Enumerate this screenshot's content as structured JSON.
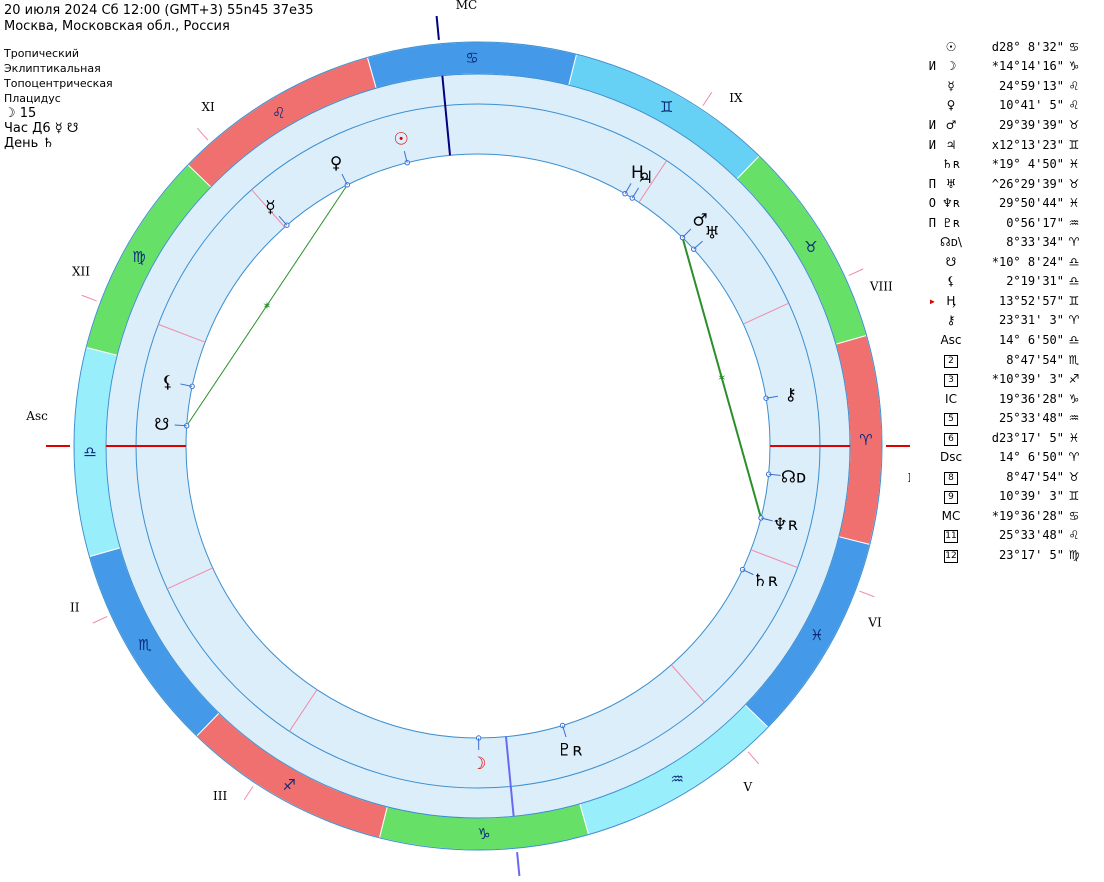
{
  "header": {
    "line1": "20 июля 2024  Сб  12:00 (GMT+3) 55n45  37e35",
    "line2": "Москва, Московская обл., Россия"
  },
  "settings": {
    "zodiac": "Тропический",
    "coordinates": "Эклиптикальная",
    "centric": "Топоцентрическая",
    "houses": "Плацидус",
    "moon_day": "☽  15",
    "hour": "Час Д6 ☿ ☋",
    "day": "День ♄"
  },
  "chart_data": {
    "type": "diagram",
    "asc_deg": 194.11,
    "signs": [
      {
        "glyph": "♈",
        "color": "#f07070"
      },
      {
        "glyph": "♉",
        "color": "#66e066"
      },
      {
        "glyph": "♊",
        "color": "#66d0f5"
      },
      {
        "glyph": "♋",
        "color": "#4499e8"
      },
      {
        "glyph": "♌",
        "color": "#f07070"
      },
      {
        "glyph": "♍",
        "color": "#66e066"
      },
      {
        "glyph": "♎",
        "color": "#99eefc"
      },
      {
        "glyph": "♏",
        "color": "#4499e8"
      },
      {
        "glyph": "♐",
        "color": "#f07070"
      },
      {
        "glyph": "♑",
        "color": "#66e066"
      },
      {
        "glyph": "♒",
        "color": "#99eefc"
      },
      {
        "glyph": "♓",
        "color": "#4499e8"
      }
    ],
    "cusps": [
      {
        "label": "Asc",
        "deg": 194.11
      },
      {
        "label": "II",
        "deg": 218.8
      },
      {
        "label": "III",
        "deg": 250.65
      },
      {
        "label": "IC",
        "deg": 289.61
      },
      {
        "label": "V",
        "deg": 325.56
      },
      {
        "label": "VI",
        "deg": 353.28
      },
      {
        "label": "Dsc",
        "deg": 14.11
      },
      {
        "label": "VIII",
        "deg": 38.8
      },
      {
        "label": "IX",
        "deg": 70.65
      },
      {
        "label": "MC",
        "deg": 109.61
      },
      {
        "label": "XI",
        "deg": 145.56
      },
      {
        "label": "XII",
        "deg": 173.28
      }
    ],
    "planets": [
      {
        "name": "sun",
        "glyph": "☉",
        "deg": 118.14,
        "color": "#e00000",
        "boxed": true
      },
      {
        "name": "moon",
        "glyph": "☽",
        "deg": 284.24,
        "color": "#e00000"
      },
      {
        "name": "mercury",
        "glyph": "☿",
        "deg": 144.99,
        "color": "#000000"
      },
      {
        "name": "venus",
        "glyph": "♀",
        "deg": 130.69,
        "color": "#000000"
      },
      {
        "name": "mars",
        "glyph": "♂",
        "deg": 59.66,
        "color": "#000000"
      },
      {
        "name": "jupiter",
        "glyph": "♃",
        "deg": 72.22,
        "color": "#000000"
      },
      {
        "name": "saturn",
        "glyph": "♄ʀ",
        "deg": 349.08,
        "color": "#000000"
      },
      {
        "name": "uranus",
        "glyph": "♅",
        "deg": 56.49,
        "color": "#000000"
      },
      {
        "name": "neptune",
        "glyph": "♆ʀ",
        "deg": 359.85,
        "color": "#000000"
      },
      {
        "name": "pluto",
        "glyph": "♇ʀ",
        "deg": 300.94,
        "color": "#000000"
      },
      {
        "name": "node",
        "glyph": "☊ᴅ",
        "deg": 8.56,
        "color": "#000000"
      },
      {
        "name": "south-node",
        "glyph": "☋",
        "deg": 190.14,
        "color": "#000000"
      },
      {
        "name": "lilith",
        "glyph": "⚸",
        "deg": 182.33,
        "color": "#000000"
      },
      {
        "name": "haumea",
        "glyph": "Ӊ",
        "deg": 73.88,
        "color": "#000000"
      },
      {
        "name": "chiron",
        "glyph": "⚷",
        "deg": 23.53,
        "color": "#000000"
      }
    ],
    "aspects": [
      {
        "from_deg": 130.69,
        "to_deg": 190.14,
        "color": "#2a8f2a"
      },
      {
        "from_deg": 59.66,
        "to_deg": 359.85,
        "color": "#2a8f2a"
      }
    ]
  },
  "table": [
    {
      "mark": "",
      "mark_red": false,
      "sym": "☉",
      "boxed": false,
      "val": "d28° 8'32\"",
      "sign": "♋"
    },
    {
      "mark": "И",
      "mark_red": false,
      "sym": "☽",
      "boxed": false,
      "val": "*14°14'16\"",
      "sign": "♑"
    },
    {
      "mark": "",
      "mark_red": false,
      "sym": "☿",
      "boxed": false,
      "val": "24°59'13\"",
      "sign": "♌"
    },
    {
      "mark": "",
      "mark_red": false,
      "sym": "♀",
      "boxed": false,
      "val": "10°41' 5\"",
      "sign": "♌"
    },
    {
      "mark": "И",
      "mark_red": false,
      "sym": "♂",
      "boxed": false,
      "val": "29°39'39\"",
      "sign": "♉"
    },
    {
      "mark": "И",
      "mark_red": false,
      "sym": "♃",
      "boxed": false,
      "val": "x12°13'23\"",
      "sign": "♊"
    },
    {
      "mark": "",
      "mark_red": false,
      "sym": "♄ʀ",
      "boxed": false,
      "val": "*19° 4'50\"",
      "sign": "♓"
    },
    {
      "mark": "П",
      "mark_red": false,
      "sym": "♅",
      "boxed": false,
      "val": "^26°29'39\"",
      "sign": "♉"
    },
    {
      "mark": "О",
      "mark_red": false,
      "sym": "♆ʀ",
      "boxed": false,
      "val": "29°50'44\"",
      "sign": "♓"
    },
    {
      "mark": "П",
      "mark_red": false,
      "sym": "♇ʀ",
      "boxed": false,
      "val": "0°56'17\"",
      "sign": "♒"
    },
    {
      "mark": "",
      "mark_red": false,
      "sym": "☊ᴅ\\",
      "boxed": false,
      "val": "8°33'34\"",
      "sign": "♈"
    },
    {
      "mark": "",
      "mark_red": false,
      "sym": "☋",
      "boxed": false,
      "val": "*10° 8'24\"",
      "sign": "♎"
    },
    {
      "mark": "",
      "mark_red": false,
      "sym": "⚸",
      "boxed": false,
      "val": "2°19'31\"",
      "sign": "♎"
    },
    {
      "mark": "▸",
      "mark_red": true,
      "sym": "Ӊ",
      "boxed": false,
      "val": "13°52'57\"",
      "sign": "♊"
    },
    {
      "mark": "",
      "mark_red": false,
      "sym": "⚷",
      "boxed": false,
      "val": "23°31' 3\"",
      "sign": "♈"
    },
    {
      "mark": "",
      "mark_red": false,
      "sym": "Asc",
      "boxed": false,
      "val": "14° 6'50\"",
      "sign": "♎"
    },
    {
      "mark": "",
      "mark_red": false,
      "sym": "2",
      "boxed": true,
      "val": "8°47'54\"",
      "sign": "♏"
    },
    {
      "mark": "",
      "mark_red": false,
      "sym": "3",
      "boxed": true,
      "val": "*10°39' 3\"",
      "sign": "♐"
    },
    {
      "mark": "",
      "mark_red": false,
      "sym": "IC",
      "boxed": false,
      "val": "19°36'28\"",
      "sign": "♑"
    },
    {
      "mark": "",
      "mark_red": false,
      "sym": "5",
      "boxed": true,
      "val": "25°33'48\"",
      "sign": "♒"
    },
    {
      "mark": "",
      "mark_red": false,
      "sym": "6",
      "boxed": true,
      "val": "d23°17' 5\"",
      "sign": "♓"
    },
    {
      "mark": "",
      "mark_red": false,
      "sym": "Dsc",
      "boxed": false,
      "val": "14° 6'50\"",
      "sign": "♈"
    },
    {
      "mark": "",
      "mark_red": false,
      "sym": "8",
      "boxed": true,
      "val": "8°47'54\"",
      "sign": "♉"
    },
    {
      "mark": "",
      "mark_red": false,
      "sym": "9",
      "boxed": true,
      "val": "10°39' 3\"",
      "sign": "♊"
    },
    {
      "mark": "",
      "mark_red": false,
      "sym": "MC",
      "boxed": false,
      "val": "*19°36'28\"",
      "sign": "♋"
    },
    {
      "mark": "",
      "mark_red": false,
      "sym": "11",
      "boxed": true,
      "val": "25°33'48\"",
      "sign": "♌"
    },
    {
      "mark": "",
      "mark_red": false,
      "sym": "12",
      "boxed": true,
      "val": "23°17' 5\"",
      "sign": "♍"
    }
  ]
}
